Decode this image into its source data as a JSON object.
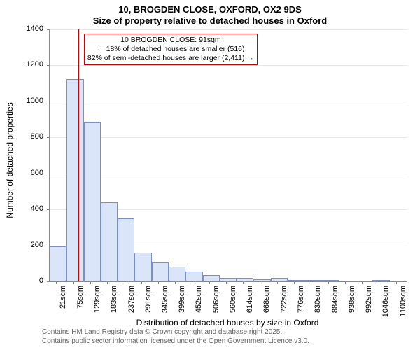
{
  "title_line1": "10, BROGDEN CLOSE, OXFORD, OX2 9DS",
  "title_line2": "Size of property relative to detached houses in Oxford",
  "ylabel": "Number of detached properties",
  "xlabel": "Distribution of detached houses by size in Oxford",
  "footer_line1": "Contains HM Land Registry data © Crown copyright and database right 2025.",
  "footer_line2": "Contains public sector information licensed under the Open Government Licence v3.0.",
  "chart": {
    "type": "histogram",
    "ylim": [
      0,
      1400
    ],
    "ytick_step": 200,
    "bar_fill": "#dbe5fa",
    "bar_border": "#7a8fc9",
    "axis_color": "#888888",
    "grid_color": "#e8e8e8",
    "background_color": "#ffffff",
    "marker_color": "#cc0000",
    "marker_x": 91,
    "title_fontsize": 13,
    "label_fontsize": 12,
    "tick_fontsize": 11,
    "footer_fontsize": 10,
    "bins": [
      {
        "start": 0,
        "end": 54,
        "count": 195
      },
      {
        "start": 54,
        "end": 108,
        "count": 1125
      },
      {
        "start": 108,
        "end": 162,
        "count": 885
      },
      {
        "start": 162,
        "end": 216,
        "count": 440
      },
      {
        "start": 216,
        "end": 270,
        "count": 350
      },
      {
        "start": 270,
        "end": 324,
        "count": 160
      },
      {
        "start": 324,
        "end": 378,
        "count": 105
      },
      {
        "start": 378,
        "end": 432,
        "count": 80
      },
      {
        "start": 432,
        "end": 486,
        "count": 55
      },
      {
        "start": 486,
        "end": 540,
        "count": 35
      },
      {
        "start": 540,
        "end": 594,
        "count": 18
      },
      {
        "start": 594,
        "end": 648,
        "count": 20
      },
      {
        "start": 648,
        "end": 702,
        "count": 10
      },
      {
        "start": 702,
        "end": 756,
        "count": 20
      },
      {
        "start": 756,
        "end": 810,
        "count": 6
      },
      {
        "start": 810,
        "end": 864,
        "count": 3
      },
      {
        "start": 864,
        "end": 918,
        "count": 3
      },
      {
        "start": 918,
        "end": 972,
        "count": 0
      },
      {
        "start": 972,
        "end": 1026,
        "count": 0
      },
      {
        "start": 1026,
        "end": 1080,
        "count": 2
      },
      {
        "start": 1080,
        "end": 1134,
        "count": 0
      }
    ],
    "xticks": [
      21,
      75,
      129,
      183,
      237,
      291,
      345,
      399,
      452,
      506,
      560,
      614,
      668,
      722,
      776,
      830,
      884,
      938,
      992,
      1046,
      1100
    ],
    "xtick_suffix": "sqm",
    "x_range": [
      0,
      1134
    ]
  },
  "callout": {
    "line1": "10 BROGDEN CLOSE: 91sqm",
    "line2": "← 18% of detached houses are smaller (516)",
    "line3": "82% of semi-detached houses are larger (2,411) →"
  }
}
